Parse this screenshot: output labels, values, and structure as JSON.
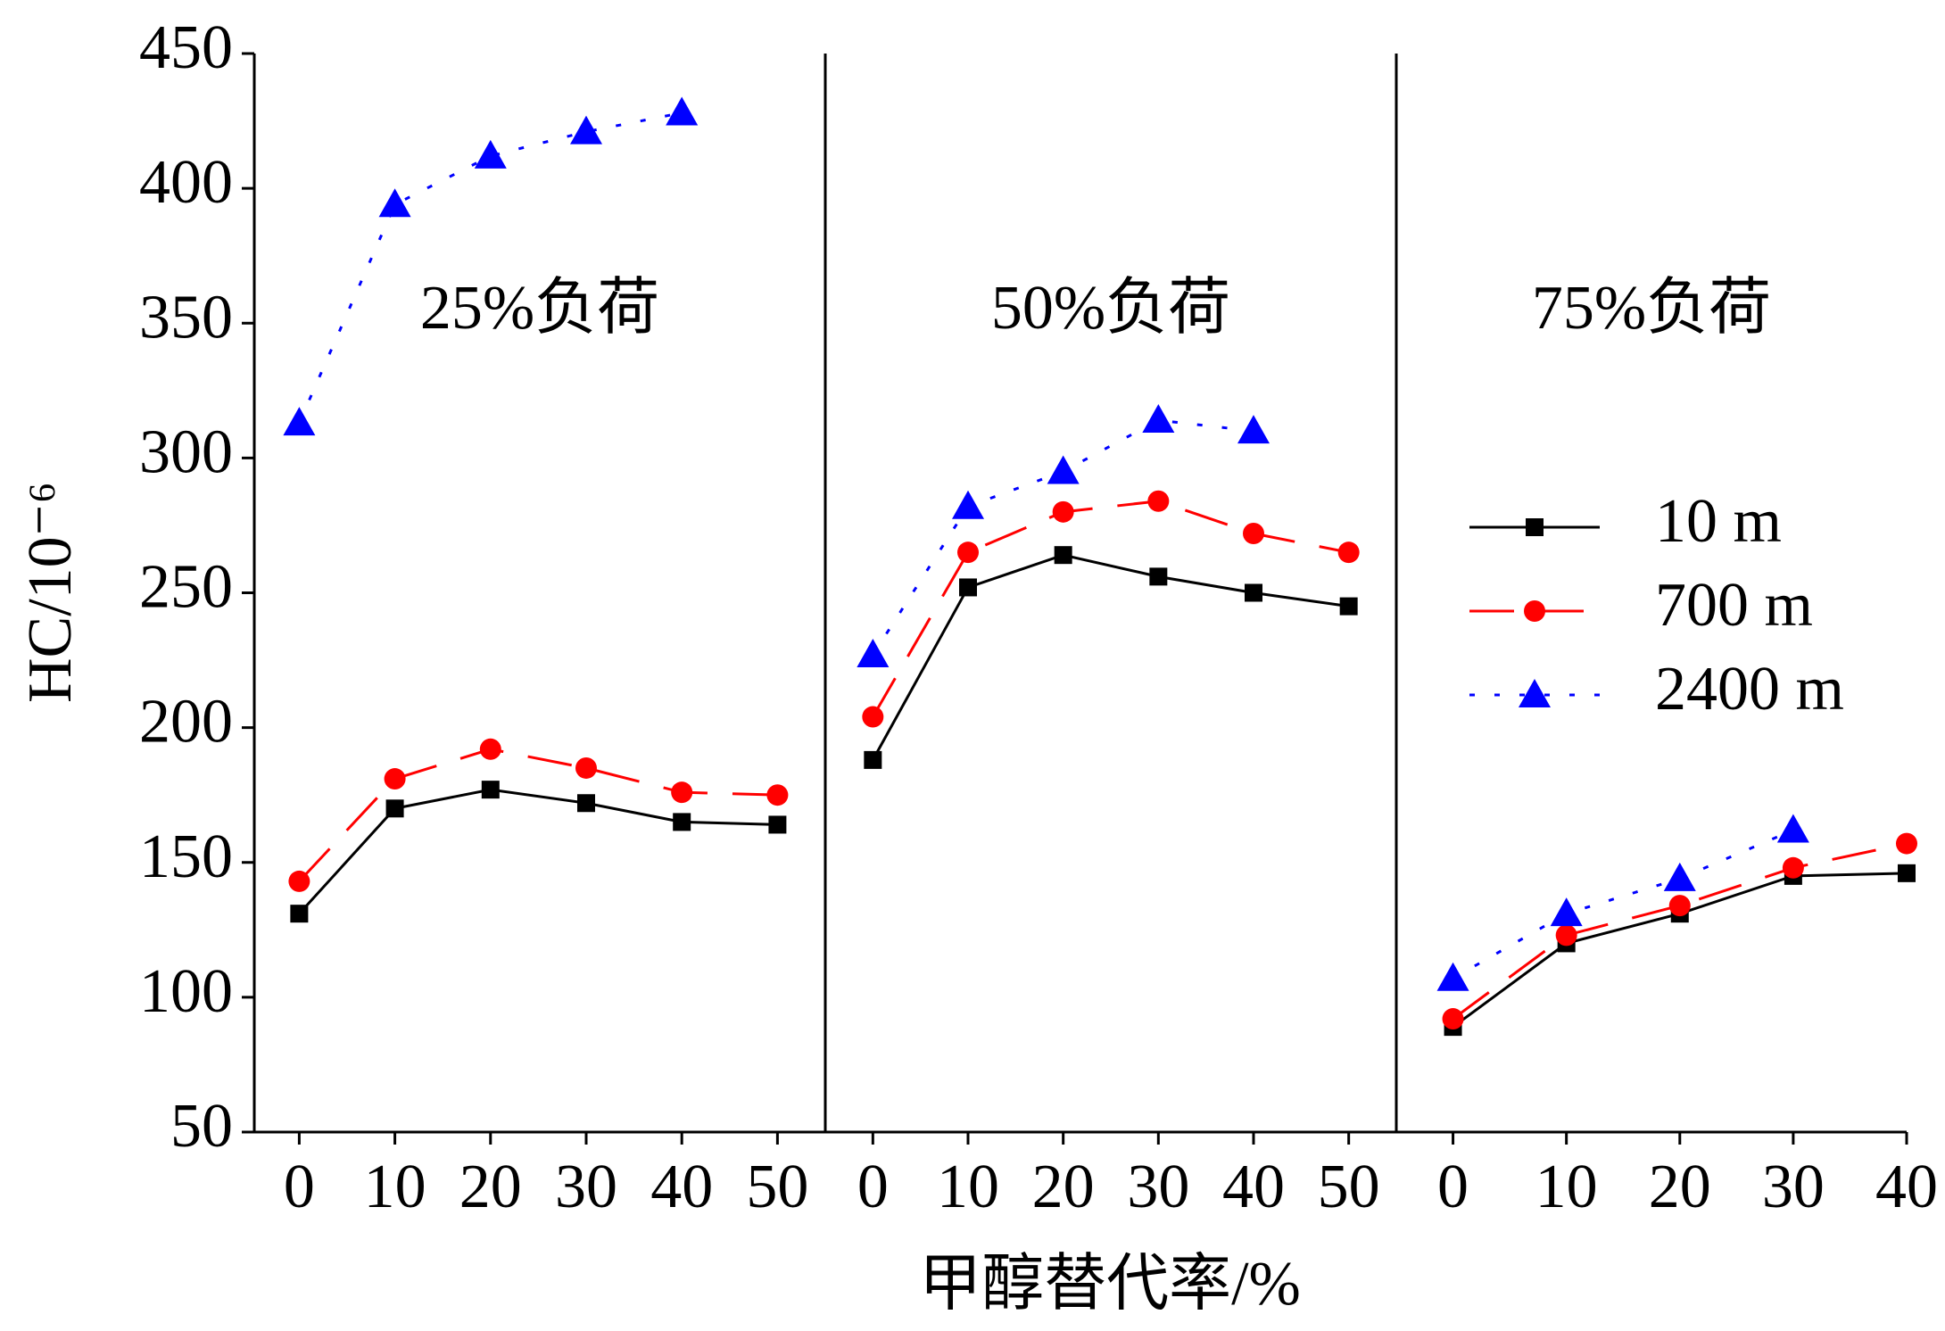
{
  "chart_data": {
    "type": "line",
    "ylabel": "HC/10⁻⁶",
    "xlabel": "甲醇替代率/%",
    "annotations": [
      "25%负荷",
      "50%负荷",
      "75%负荷"
    ],
    "ylim": [
      50,
      450
    ],
    "yticks": [
      50,
      100,
      150,
      200,
      250,
      300,
      350,
      400,
      450
    ],
    "x": [
      [
        0,
        10,
        20,
        30,
        40,
        50
      ],
      [
        0,
        10,
        20,
        30,
        40,
        50
      ],
      [
        0,
        10,
        20,
        30,
        40
      ]
    ],
    "xlim": [
      [
        -4.7,
        55
      ],
      [
        -5,
        55
      ],
      [
        -5,
        40
      ]
    ],
    "xticks": [
      [
        0,
        10,
        20,
        30,
        40,
        50
      ],
      [
        0,
        10,
        20,
        30,
        40,
        50
      ],
      [
        0,
        10,
        20,
        30,
        40
      ]
    ],
    "legend": "right",
    "series": [
      {
        "name": "10 m",
        "color": "#000000",
        "values": [
          [
            131,
            170,
            177,
            172,
            165,
            164
          ],
          [
            188,
            252,
            264,
            256,
            250,
            245
          ],
          [
            89,
            120,
            131,
            145,
            146
          ]
        ]
      },
      {
        "name": "700 m",
        "color": "#ff0000",
        "values": [
          [
            143,
            181,
            192,
            185,
            176,
            175
          ],
          [
            204,
            265,
            280,
            284,
            272,
            265
          ],
          [
            92,
            123,
            134,
            148,
            157
          ]
        ]
      },
      {
        "name": "2400 m",
        "color": "#0000ff",
        "values": [
          [
            313,
            394,
            412,
            421,
            428,
            null
          ],
          [
            227,
            282,
            295,
            314,
            310,
            null
          ],
          [
            107,
            131,
            144,
            162,
            null
          ]
        ]
      }
    ]
  }
}
